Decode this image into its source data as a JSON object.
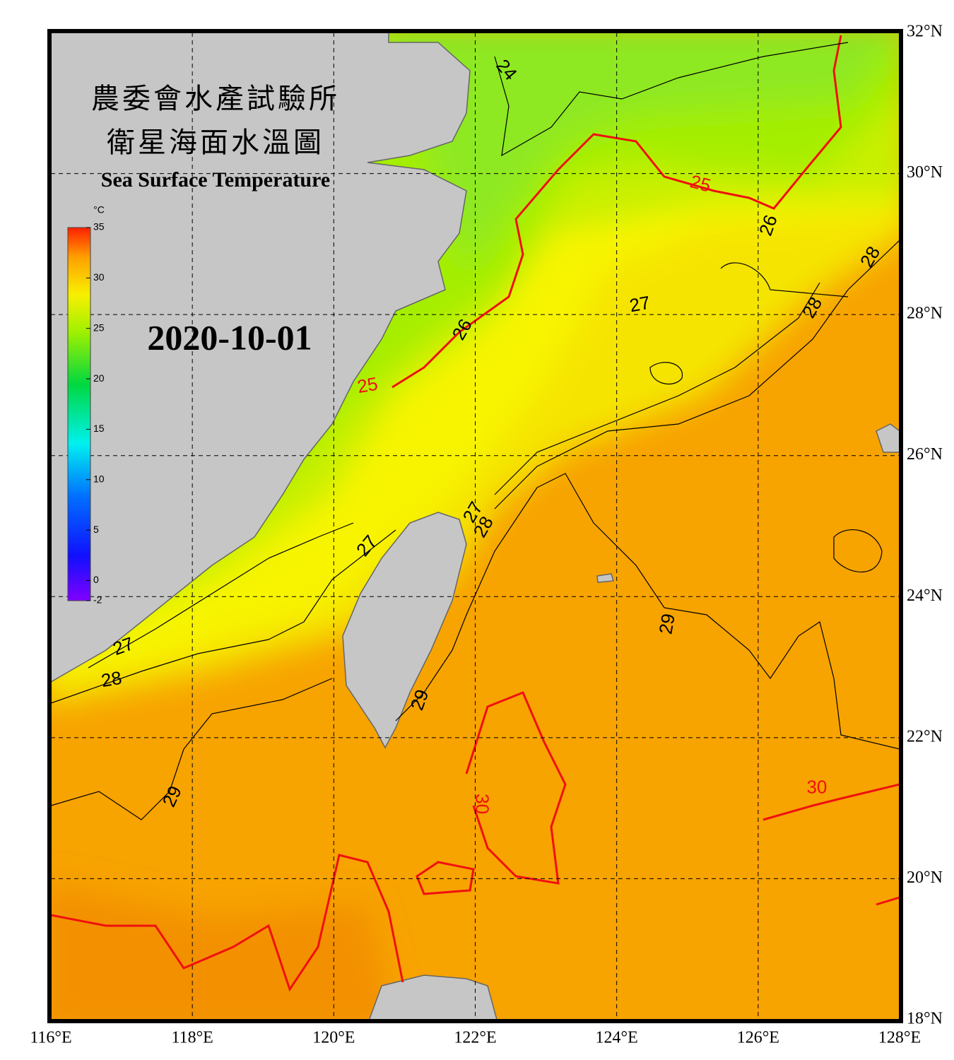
{
  "header": {
    "title_line1": "農委會水產試驗所",
    "title_line2": "衛星海面水溫圖",
    "subtitle": "Sea Surface Temperature",
    "date": "2020-10-01"
  },
  "colorbar": {
    "unit": "°C",
    "lim": [
      -2,
      35
    ],
    "ticks": [
      35,
      30,
      25,
      20,
      15,
      10,
      5,
      0,
      -2
    ]
  },
  "map": {
    "lonlim": [
      116,
      128
    ],
    "latlim": [
      18,
      32
    ],
    "lonticks": [
      {
        "value": 116,
        "label": "116°E"
      },
      {
        "value": 118,
        "label": "118°E"
      },
      {
        "value": 120,
        "label": "120°E"
      },
      {
        "value": 122,
        "label": "122°E"
      },
      {
        "value": 124,
        "label": "124°E"
      },
      {
        "value": 126,
        "label": "126°E"
      },
      {
        "value": 128,
        "label": "128°E"
      }
    ],
    "latticks": [
      {
        "value": 18,
        "label": "18°N"
      },
      {
        "value": 20,
        "label": "20°N"
      },
      {
        "value": 22,
        "label": "22°N"
      },
      {
        "value": 24,
        "label": "24°N"
      },
      {
        "value": 26,
        "label": "26°N"
      },
      {
        "value": 28,
        "label": "28°N"
      },
      {
        "value": 30,
        "label": "30°N"
      },
      {
        "value": 32,
        "label": "32°N"
      }
    ],
    "contour_labels": [
      {
        "value": 24,
        "lon": 122.43,
        "lat": 31.46,
        "color": "#000000"
      },
      {
        "value": 25,
        "lon": 125.18,
        "lat": 29.84,
        "color": "#f01010"
      },
      {
        "value": 26,
        "lon": 126.16,
        "lat": 29.26,
        "color": "#000000"
      },
      {
        "value": 28,
        "lon": 127.6,
        "lat": 28.81,
        "color": "#000000"
      },
      {
        "value": 27,
        "lon": 124.33,
        "lat": 28.13,
        "color": "#000000"
      },
      {
        "value": 28,
        "lon": 126.78,
        "lat": 28.09,
        "color": "#000000"
      },
      {
        "value": 26,
        "lon": 121.83,
        "lat": 27.78,
        "color": "#000000"
      },
      {
        "value": 25,
        "lon": 120.48,
        "lat": 26.98,
        "color": "#f01010"
      },
      {
        "value": 27,
        "lon": 121.98,
        "lat": 25.19,
        "color": "#000000"
      },
      {
        "value": 28,
        "lon": 122.13,
        "lat": 24.98,
        "color": "#000000"
      },
      {
        "value": 27,
        "lon": 120.48,
        "lat": 24.71,
        "color": "#000000"
      },
      {
        "value": 29,
        "lon": 124.73,
        "lat": 23.61,
        "color": "#000000"
      },
      {
        "value": 27,
        "lon": 117.03,
        "lat": 23.28,
        "color": "#000000"
      },
      {
        "value": 28,
        "lon": 116.86,
        "lat": 22.81,
        "color": "#000000"
      },
      {
        "value": 29,
        "lon": 121.23,
        "lat": 22.53,
        "color": "#000000"
      },
      {
        "value": 30,
        "lon": 126.83,
        "lat": 21.28,
        "color": "#f01010"
      },
      {
        "value": 29,
        "lon": 117.73,
        "lat": 21.16,
        "color": "#000000"
      },
      {
        "value": 30,
        "lon": 122.08,
        "lat": 21.06,
        "color": "#f01010"
      }
    ]
  }
}
